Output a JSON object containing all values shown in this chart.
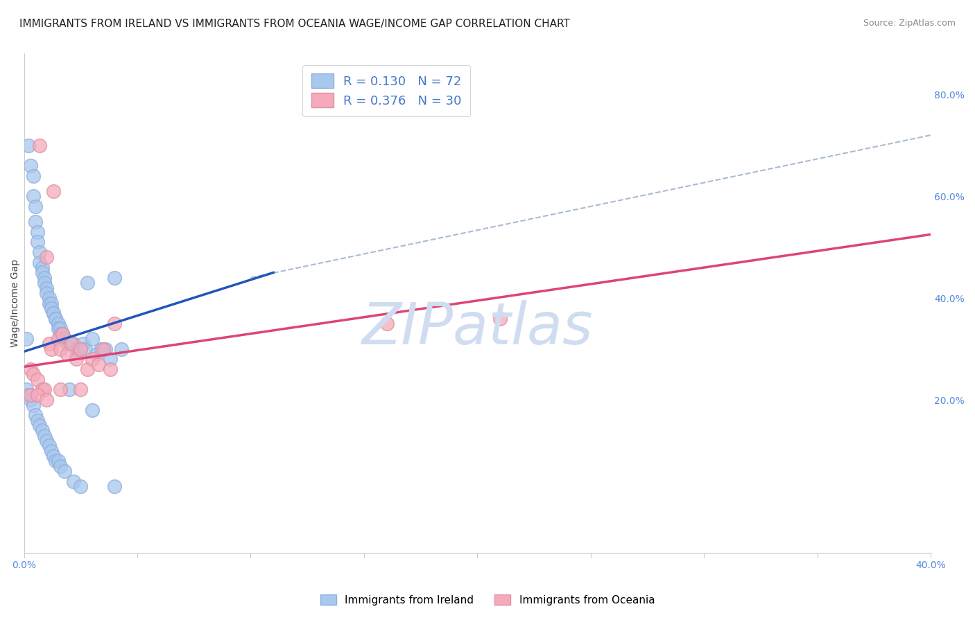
{
  "title": "IMMIGRANTS FROM IRELAND VS IMMIGRANTS FROM OCEANIA WAGE/INCOME GAP CORRELATION CHART",
  "source": "Source: ZipAtlas.com",
  "ylabel": "Wage/Income Gap",
  "xlim": [
    0.0,
    0.4
  ],
  "ylim": [
    -0.1,
    0.88
  ],
  "ireland_R": 0.13,
  "ireland_N": 72,
  "oceania_R": 0.376,
  "oceania_N": 30,
  "ireland_color": "#A8C8EE",
  "ireland_edge_color": "#90AEDD",
  "oceania_color": "#F5AABB",
  "oceania_edge_color": "#E090A0",
  "ireland_line_color": "#2255BB",
  "oceania_line_color": "#DD4477",
  "dashed_line_color": "#AABBD0",
  "background_color": "#FFFFFF",
  "grid_color": "#DDDDDD",
  "title_fontsize": 11,
  "axis_label_fontsize": 10,
  "tick_fontsize": 10,
  "watermark": "ZIPatlas",
  "watermark_color": "#D0DCF0",
  "ireland_x": [
    0.001,
    0.002,
    0.003,
    0.004,
    0.004,
    0.005,
    0.005,
    0.006,
    0.006,
    0.007,
    0.007,
    0.008,
    0.008,
    0.009,
    0.009,
    0.01,
    0.01,
    0.011,
    0.011,
    0.012,
    0.012,
    0.013,
    0.013,
    0.014,
    0.014,
    0.015,
    0.015,
    0.016,
    0.016,
    0.017,
    0.017,
    0.018,
    0.018,
    0.019,
    0.02,
    0.021,
    0.022,
    0.023,
    0.024,
    0.025,
    0.026,
    0.027,
    0.028,
    0.03,
    0.032,
    0.034,
    0.036,
    0.038,
    0.04,
    0.043,
    0.001,
    0.002,
    0.003,
    0.004,
    0.005,
    0.006,
    0.007,
    0.008,
    0.009,
    0.01,
    0.011,
    0.012,
    0.013,
    0.014,
    0.015,
    0.016,
    0.018,
    0.02,
    0.022,
    0.025,
    0.03,
    0.04
  ],
  "ireland_y": [
    0.32,
    0.7,
    0.66,
    0.64,
    0.6,
    0.58,
    0.55,
    0.53,
    0.51,
    0.49,
    0.47,
    0.46,
    0.45,
    0.44,
    0.43,
    0.42,
    0.41,
    0.4,
    0.39,
    0.39,
    0.38,
    0.37,
    0.37,
    0.36,
    0.36,
    0.35,
    0.34,
    0.34,
    0.33,
    0.33,
    0.33,
    0.32,
    0.32,
    0.31,
    0.31,
    0.31,
    0.31,
    0.3,
    0.3,
    0.3,
    0.31,
    0.3,
    0.43,
    0.32,
    0.29,
    0.3,
    0.3,
    0.28,
    0.44,
    0.3,
    0.22,
    0.21,
    0.2,
    0.19,
    0.17,
    0.16,
    0.15,
    0.14,
    0.13,
    0.12,
    0.11,
    0.1,
    0.09,
    0.08,
    0.08,
    0.07,
    0.06,
    0.22,
    0.04,
    0.03,
    0.18,
    0.03
  ],
  "oceania_x": [
    0.003,
    0.004,
    0.006,
    0.007,
    0.008,
    0.009,
    0.01,
    0.011,
    0.012,
    0.013,
    0.015,
    0.016,
    0.017,
    0.019,
    0.021,
    0.023,
    0.025,
    0.028,
    0.03,
    0.033,
    0.035,
    0.038,
    0.04,
    0.16,
    0.21,
    0.003,
    0.006,
    0.01,
    0.016,
    0.025
  ],
  "oceania_y": [
    0.26,
    0.25,
    0.24,
    0.7,
    0.22,
    0.22,
    0.48,
    0.31,
    0.3,
    0.61,
    0.32,
    0.3,
    0.33,
    0.29,
    0.31,
    0.28,
    0.3,
    0.26,
    0.28,
    0.27,
    0.3,
    0.26,
    0.35,
    0.35,
    0.36,
    0.21,
    0.21,
    0.2,
    0.22,
    0.22
  ],
  "ireland_line_x": [
    0.0,
    0.11
  ],
  "ireland_line_y": [
    0.295,
    0.45
  ],
  "oceania_line_x": [
    0.0,
    0.4
  ],
  "oceania_line_y": [
    0.265,
    0.525
  ],
  "dashed_line_x": [
    0.1,
    0.4
  ],
  "dashed_line_y": [
    0.44,
    0.72
  ]
}
